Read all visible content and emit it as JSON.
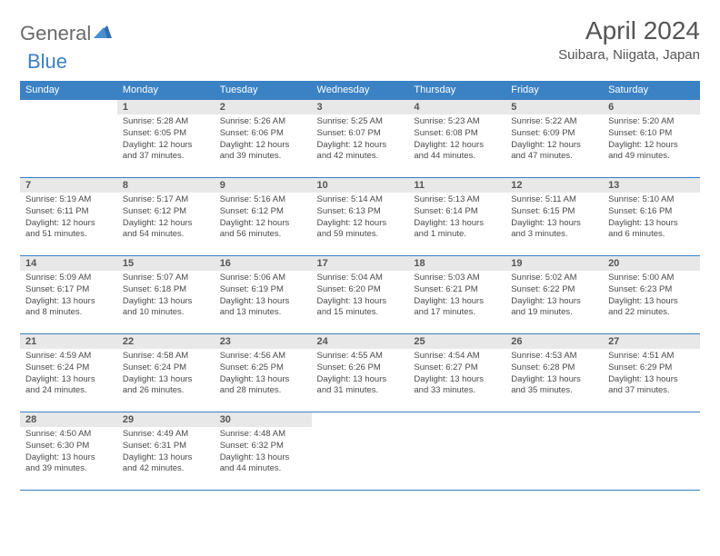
{
  "logo": {
    "part1": "General",
    "part2": "Blue"
  },
  "title": "April 2024",
  "location": "Suibara, Niigata, Japan",
  "header_color": "#3b82c4",
  "border_color": "#3b7fc4",
  "daynum_bg": "#e8e8e8",
  "text_color": "#4a4a4a",
  "days_of_week": [
    "Sunday",
    "Monday",
    "Tuesday",
    "Wednesday",
    "Thursday",
    "Friday",
    "Saturday"
  ],
  "weeks": [
    [
      null,
      {
        "n": "1",
        "sr": "5:28 AM",
        "ss": "6:05 PM",
        "dh": "12",
        "dm": "37"
      },
      {
        "n": "2",
        "sr": "5:26 AM",
        "ss": "6:06 PM",
        "dh": "12",
        "dm": "39"
      },
      {
        "n": "3",
        "sr": "5:25 AM",
        "ss": "6:07 PM",
        "dh": "12",
        "dm": "42"
      },
      {
        "n": "4",
        "sr": "5:23 AM",
        "ss": "6:08 PM",
        "dh": "12",
        "dm": "44"
      },
      {
        "n": "5",
        "sr": "5:22 AM",
        "ss": "6:09 PM",
        "dh": "12",
        "dm": "47"
      },
      {
        "n": "6",
        "sr": "5:20 AM",
        "ss": "6:10 PM",
        "dh": "12",
        "dm": "49"
      }
    ],
    [
      {
        "n": "7",
        "sr": "5:19 AM",
        "ss": "6:11 PM",
        "dh": "12",
        "dm": "51"
      },
      {
        "n": "8",
        "sr": "5:17 AM",
        "ss": "6:12 PM",
        "dh": "12",
        "dm": "54"
      },
      {
        "n": "9",
        "sr": "5:16 AM",
        "ss": "6:12 PM",
        "dh": "12",
        "dm": "56"
      },
      {
        "n": "10",
        "sr": "5:14 AM",
        "ss": "6:13 PM",
        "dh": "12",
        "dm": "59"
      },
      {
        "n": "11",
        "sr": "5:13 AM",
        "ss": "6:14 PM",
        "dh": "13",
        "dm": "1",
        "singular": true
      },
      {
        "n": "12",
        "sr": "5:11 AM",
        "ss": "6:15 PM",
        "dh": "13",
        "dm": "3"
      },
      {
        "n": "13",
        "sr": "5:10 AM",
        "ss": "6:16 PM",
        "dh": "13",
        "dm": "6"
      }
    ],
    [
      {
        "n": "14",
        "sr": "5:09 AM",
        "ss": "6:17 PM",
        "dh": "13",
        "dm": "8"
      },
      {
        "n": "15",
        "sr": "5:07 AM",
        "ss": "6:18 PM",
        "dh": "13",
        "dm": "10"
      },
      {
        "n": "16",
        "sr": "5:06 AM",
        "ss": "6:19 PM",
        "dh": "13",
        "dm": "13"
      },
      {
        "n": "17",
        "sr": "5:04 AM",
        "ss": "6:20 PM",
        "dh": "13",
        "dm": "15"
      },
      {
        "n": "18",
        "sr": "5:03 AM",
        "ss": "6:21 PM",
        "dh": "13",
        "dm": "17"
      },
      {
        "n": "19",
        "sr": "5:02 AM",
        "ss": "6:22 PM",
        "dh": "13",
        "dm": "19"
      },
      {
        "n": "20",
        "sr": "5:00 AM",
        "ss": "6:23 PM",
        "dh": "13",
        "dm": "22"
      }
    ],
    [
      {
        "n": "21",
        "sr": "4:59 AM",
        "ss": "6:24 PM",
        "dh": "13",
        "dm": "24"
      },
      {
        "n": "22",
        "sr": "4:58 AM",
        "ss": "6:24 PM",
        "dh": "13",
        "dm": "26"
      },
      {
        "n": "23",
        "sr": "4:56 AM",
        "ss": "6:25 PM",
        "dh": "13",
        "dm": "28"
      },
      {
        "n": "24",
        "sr": "4:55 AM",
        "ss": "6:26 PM",
        "dh": "13",
        "dm": "31"
      },
      {
        "n": "25",
        "sr": "4:54 AM",
        "ss": "6:27 PM",
        "dh": "13",
        "dm": "33"
      },
      {
        "n": "26",
        "sr": "4:53 AM",
        "ss": "6:28 PM",
        "dh": "13",
        "dm": "35"
      },
      {
        "n": "27",
        "sr": "4:51 AM",
        "ss": "6:29 PM",
        "dh": "13",
        "dm": "37"
      }
    ],
    [
      {
        "n": "28",
        "sr": "4:50 AM",
        "ss": "6:30 PM",
        "dh": "13",
        "dm": "39"
      },
      {
        "n": "29",
        "sr": "4:49 AM",
        "ss": "6:31 PM",
        "dh": "13",
        "dm": "42"
      },
      {
        "n": "30",
        "sr": "4:48 AM",
        "ss": "6:32 PM",
        "dh": "13",
        "dm": "44"
      },
      null,
      null,
      null,
      null
    ]
  ]
}
